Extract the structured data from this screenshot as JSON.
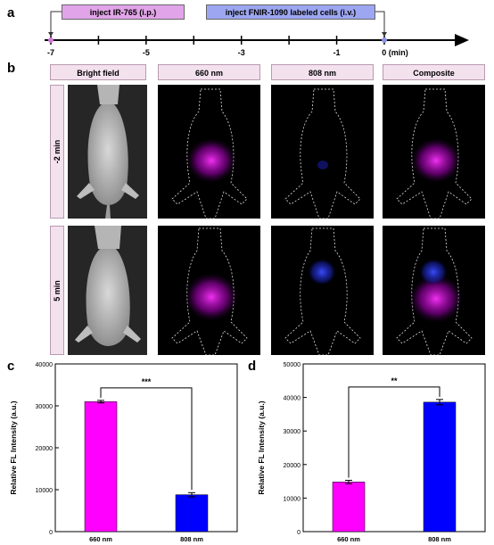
{
  "panel_labels": {
    "a": "a",
    "b": "b",
    "c": "c",
    "d": "d"
  },
  "timeline": {
    "inject1": "inject IR-765 (i.p.)",
    "inject2": "inject FNIR-1090 labeled cells (i.v.)",
    "ticks": [
      "-7",
      "-5",
      "-3",
      "-1",
      "0 (min)"
    ],
    "colors": {
      "inject1": "#e2a4e8",
      "inject2": "#9da6f0"
    }
  },
  "imaging": {
    "columns": [
      "Bright field",
      "660 nm",
      "808 nm",
      "Composite"
    ],
    "rows": [
      "-2 min",
      "5 min"
    ]
  },
  "chart_data": [
    {
      "type": "bar",
      "panel": "c",
      "categories": [
        "660 nm",
        "808 nm"
      ],
      "values": [
        31000,
        8800
      ],
      "errors": [
        300,
        500
      ],
      "colors": [
        "#ff00ff",
        "#0000ff"
      ],
      "ylabel": "Relative FL Intensity (a.u.)",
      "ylim": [
        0,
        40000
      ],
      "yticks": [
        "0",
        "10000",
        "20000",
        "30000",
        "40000"
      ],
      "significance": "***"
    },
    {
      "type": "bar",
      "panel": "d",
      "categories": [
        "660 nm",
        "808 nm"
      ],
      "values": [
        14800,
        38600
      ],
      "errors": [
        500,
        800
      ],
      "colors": [
        "#ff00ff",
        "#0000ff"
      ],
      "ylabel": "Relative FL Intensity (a.u.)",
      "ylim": [
        0,
        50000
      ],
      "yticks": [
        "0",
        "10000",
        "20000",
        "30000",
        "40000",
        "50000"
      ],
      "significance": "**"
    }
  ]
}
